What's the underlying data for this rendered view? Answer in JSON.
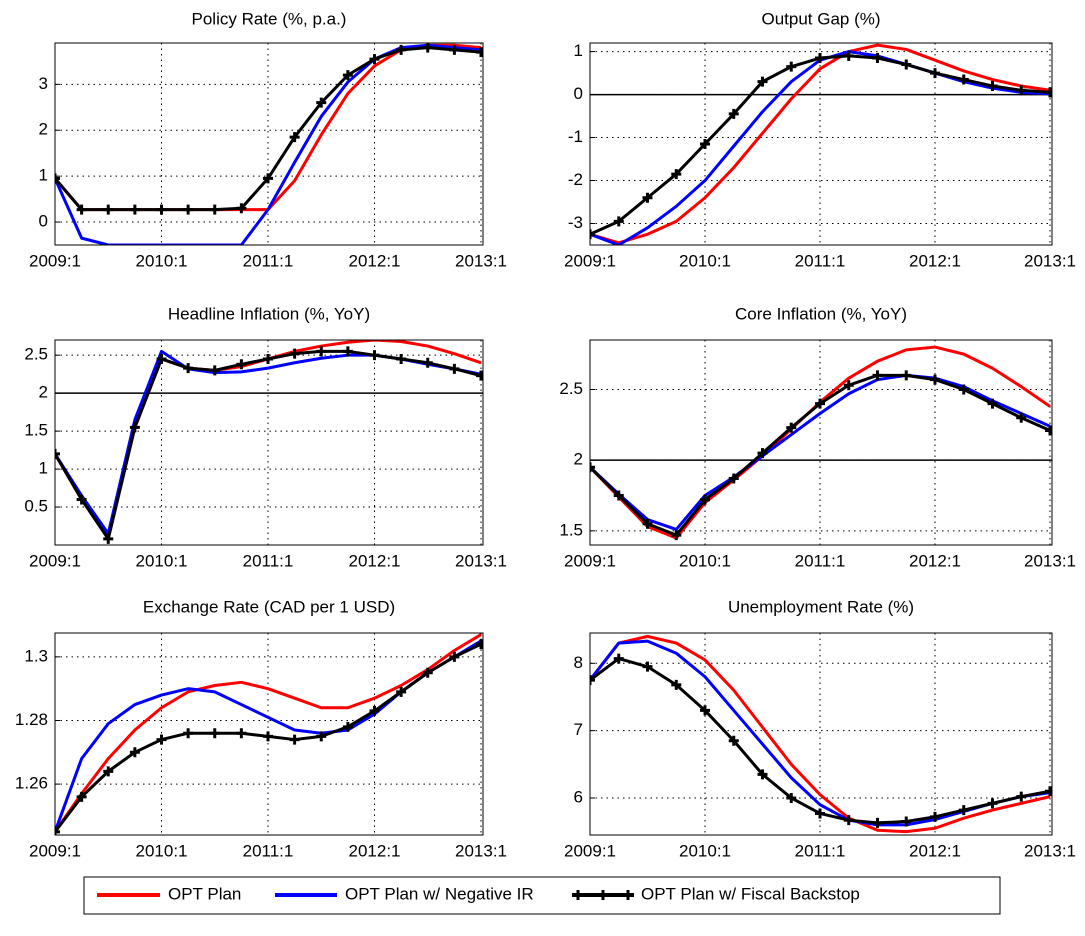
{
  "chart_data": [
    {
      "type": "line",
      "title": "Policy Rate (%, p.a.)",
      "categories": [
        "2009:1",
        null,
        null,
        null,
        "2010:1",
        null,
        null,
        null,
        "2011:1",
        null,
        null,
        null,
        "2012:1",
        null,
        null,
        null,
        "2013:1"
      ],
      "series": [
        {
          "name": "OPT Plan",
          "color": "#ff0000",
          "values": [
            0.95,
            0.27,
            0.27,
            0.27,
            0.27,
            0.27,
            0.27,
            0.27,
            0.27,
            0.9,
            1.9,
            2.8,
            3.4,
            3.75,
            3.85,
            3.85,
            3.8
          ]
        },
        {
          "name": "OPT Plan w/ Negative IR",
          "color": "#0000ff",
          "values": [
            0.95,
            -0.35,
            -0.5,
            -0.5,
            -0.5,
            -0.5,
            -0.5,
            -0.5,
            0.27,
            1.3,
            2.3,
            3.05,
            3.55,
            3.8,
            3.85,
            3.8,
            3.75
          ]
        },
        {
          "name": "OPT Plan w/ Fiscal Backstop",
          "color": "#000000",
          "marker": "plus",
          "values": [
            0.95,
            0.27,
            0.27,
            0.27,
            0.27,
            0.27,
            0.27,
            0.3,
            0.95,
            1.85,
            2.6,
            3.2,
            3.55,
            3.75,
            3.8,
            3.75,
            3.7
          ]
        }
      ],
      "ylim": [
        -0.5,
        3.9
      ],
      "yticks": [
        0,
        1,
        2,
        3
      ],
      "grid": true
    },
    {
      "type": "line",
      "title": "Output Gap (%)",
      "categories": [
        "2009:1",
        null,
        null,
        null,
        "2010:1",
        null,
        null,
        null,
        "2011:1",
        null,
        null,
        null,
        "2012:1",
        null,
        null,
        null,
        "2013:1"
      ],
      "series": [
        {
          "color": "#ff0000",
          "values": [
            -3.25,
            -3.45,
            -3.25,
            -2.95,
            -2.4,
            -1.7,
            -0.9,
            -0.1,
            0.6,
            1.0,
            1.15,
            1.05,
            0.8,
            0.55,
            0.35,
            0.2,
            0.1
          ]
        },
        {
          "color": "#0000ff",
          "values": [
            -3.25,
            -3.5,
            -3.1,
            -2.6,
            -2.0,
            -1.2,
            -0.4,
            0.3,
            0.8,
            1.0,
            0.9,
            0.7,
            0.5,
            0.3,
            0.15,
            0.05,
            0.02
          ]
        },
        {
          "color": "#000000",
          "marker": "plus",
          "values": [
            -3.25,
            -2.95,
            -2.4,
            -1.85,
            -1.15,
            -0.45,
            0.3,
            0.65,
            0.85,
            0.9,
            0.85,
            0.7,
            0.5,
            0.35,
            0.2,
            0.1,
            0.05
          ]
        }
      ],
      "ylim": [
        -3.5,
        1.2
      ],
      "yticks": [
        -3,
        -2,
        -1,
        0,
        1
      ],
      "grid": true,
      "hline": 0
    },
    {
      "type": "line",
      "title": "Headline Inflation (%, YoY)",
      "categories": [
        "2009:1",
        null,
        null,
        null,
        "2010:1",
        null,
        null,
        null,
        "2011:1",
        null,
        null,
        null,
        "2012:1",
        null,
        null,
        null,
        "2013:1"
      ],
      "series": [
        {
          "color": "#ff0000",
          "values": [
            1.2,
            0.6,
            0.1,
            1.55,
            2.45,
            2.33,
            2.3,
            2.35,
            2.45,
            2.55,
            2.62,
            2.67,
            2.7,
            2.68,
            2.62,
            2.52,
            2.4
          ]
        },
        {
          "color": "#0000ff",
          "values": [
            1.2,
            0.65,
            0.15,
            1.65,
            2.55,
            2.32,
            2.27,
            2.28,
            2.33,
            2.4,
            2.46,
            2.5,
            2.5,
            2.45,
            2.38,
            2.32,
            2.25
          ]
        },
        {
          "color": "#000000",
          "marker": "plus",
          "values": [
            1.2,
            0.6,
            0.08,
            1.55,
            2.45,
            2.33,
            2.3,
            2.38,
            2.45,
            2.52,
            2.55,
            2.55,
            2.5,
            2.45,
            2.4,
            2.32,
            2.23
          ]
        }
      ],
      "ylim": [
        0,
        2.7
      ],
      "yticks": [
        0.5,
        1,
        1.5,
        2,
        2.5
      ],
      "grid": true,
      "hline": 2
    },
    {
      "type": "line",
      "title": "Core Inflation (%, YoY)",
      "categories": [
        "2009:1",
        null,
        null,
        null,
        "2010:1",
        null,
        null,
        null,
        "2011:1",
        null,
        null,
        null,
        "2012:1",
        null,
        null,
        null,
        "2013:1"
      ],
      "series": [
        {
          "color": "#ff0000",
          "values": [
            1.95,
            1.74,
            1.53,
            1.45,
            1.7,
            1.86,
            2.03,
            2.22,
            2.41,
            2.58,
            2.7,
            2.78,
            2.8,
            2.75,
            2.65,
            2.52,
            2.38
          ]
        },
        {
          "color": "#0000ff",
          "values": [
            1.95,
            1.76,
            1.58,
            1.51,
            1.75,
            1.88,
            2.03,
            2.18,
            2.33,
            2.47,
            2.57,
            2.6,
            2.58,
            2.52,
            2.42,
            2.33,
            2.24
          ]
        },
        {
          "color": "#000000",
          "marker": "plus",
          "values": [
            1.95,
            1.75,
            1.55,
            1.47,
            1.72,
            1.87,
            2.05,
            2.23,
            2.4,
            2.53,
            2.6,
            2.6,
            2.57,
            2.5,
            2.4,
            2.3,
            2.21
          ]
        }
      ],
      "ylim": [
        1.4,
        2.85
      ],
      "yticks": [
        1.5,
        2,
        2.5
      ],
      "grid": true,
      "hline": 2
    },
    {
      "type": "line",
      "title": "Exchange Rate (CAD per 1 USD)",
      "categories": [
        "2009:1",
        null,
        null,
        null,
        "2010:1",
        null,
        null,
        null,
        "2011:1",
        null,
        null,
        null,
        "2012:1",
        null,
        null,
        null,
        "2013:1"
      ],
      "series": [
        {
          "color": "#ff0000",
          "values": [
            1.245,
            1.257,
            1.268,
            1.277,
            1.284,
            1.289,
            1.291,
            1.292,
            1.29,
            1.287,
            1.284,
            1.284,
            1.287,
            1.291,
            1.296,
            1.302,
            1.307
          ]
        },
        {
          "color": "#0000ff",
          "values": [
            1.245,
            1.268,
            1.279,
            1.285,
            1.288,
            1.29,
            1.289,
            1.285,
            1.281,
            1.277,
            1.276,
            1.277,
            1.282,
            1.289,
            1.295,
            1.3,
            1.305
          ]
        },
        {
          "color": "#000000",
          "marker": "plus",
          "values": [
            1.245,
            1.256,
            1.264,
            1.27,
            1.274,
            1.276,
            1.276,
            1.276,
            1.275,
            1.274,
            1.275,
            1.278,
            1.283,
            1.289,
            1.295,
            1.3,
            1.304
          ]
        }
      ],
      "ylim": [
        1.244,
        1.3075
      ],
      "yticks": [
        1.26,
        1.28,
        1.3
      ],
      "grid": true
    },
    {
      "type": "line",
      "title": "Unemployment Rate (%)",
      "categories": [
        "2009:1",
        null,
        null,
        null,
        "2010:1",
        null,
        null,
        null,
        "2011:1",
        null,
        null,
        null,
        "2012:1",
        null,
        null,
        null,
        "2013:1"
      ],
      "series": [
        {
          "color": "#ff0000",
          "values": [
            7.75,
            8.3,
            8.4,
            8.3,
            8.05,
            7.6,
            7.05,
            6.5,
            6.05,
            5.7,
            5.52,
            5.5,
            5.55,
            5.7,
            5.82,
            5.92,
            6.02
          ]
        },
        {
          "color": "#0000ff",
          "values": [
            7.75,
            8.3,
            8.33,
            8.15,
            7.8,
            7.3,
            6.8,
            6.3,
            5.9,
            5.67,
            5.6,
            5.6,
            5.68,
            5.8,
            5.92,
            6.02,
            6.08
          ]
        },
        {
          "color": "#000000",
          "marker": "plus",
          "values": [
            7.75,
            8.07,
            7.95,
            7.68,
            7.3,
            6.85,
            6.35,
            6.0,
            5.77,
            5.67,
            5.63,
            5.65,
            5.72,
            5.82,
            5.92,
            6.02,
            6.1
          ]
        }
      ],
      "ylim": [
        5.45,
        8.45
      ],
      "yticks": [
        6,
        7,
        8
      ],
      "grid": true
    }
  ]
}
